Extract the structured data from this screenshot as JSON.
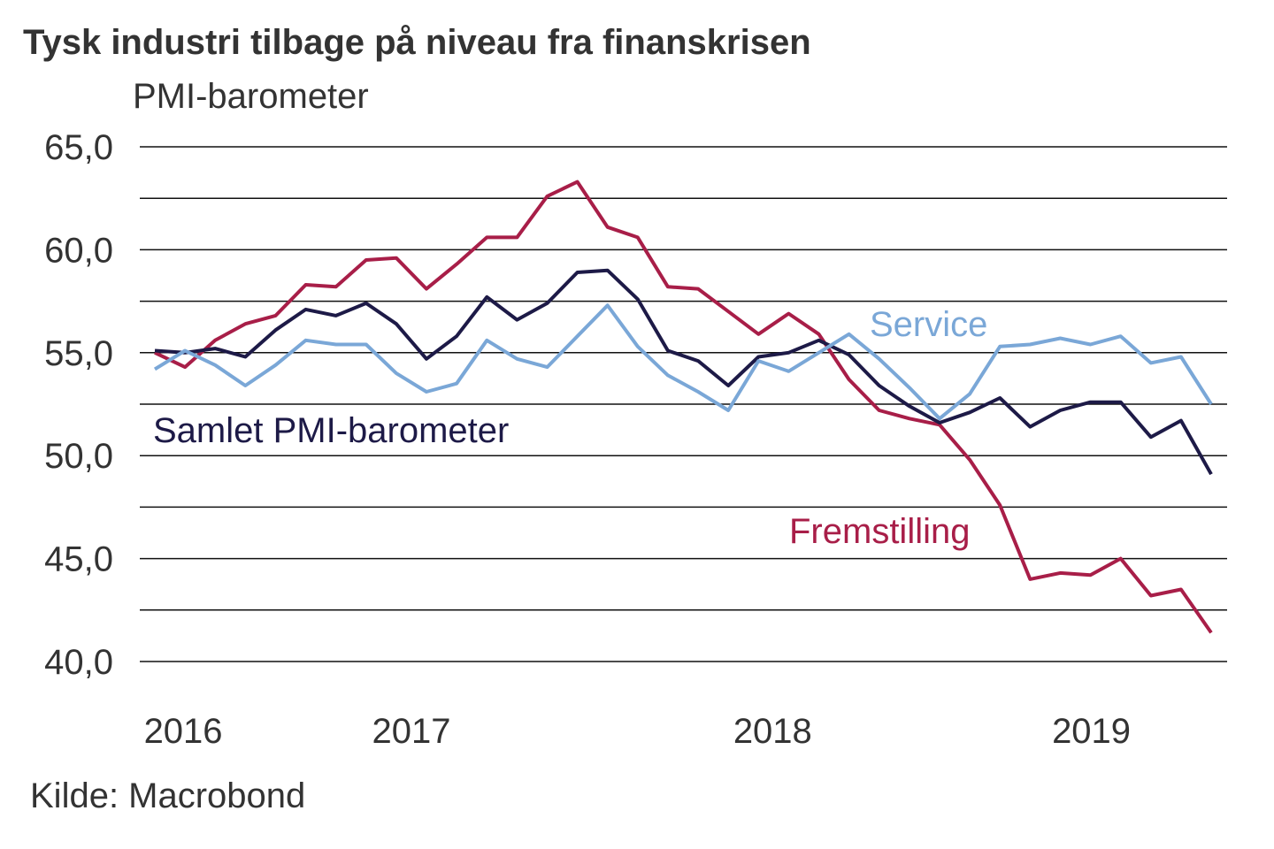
{
  "chart_data": {
    "type": "line",
    "title": "Tysk industri tilbage på niveau fra finanskrisen",
    "ylabel": "PMI-barometer",
    "xlabel": "",
    "ylim": [
      40,
      65
    ],
    "y_ticks": [
      "65,0",
      "60,0",
      "55,0",
      "50,0",
      "45,0",
      "40,0"
    ],
    "y_tick_values": [
      65,
      60,
      55,
      50,
      45,
      40
    ],
    "gridlines_every": 2.5,
    "grid": true,
    "x_count": 36,
    "x_ticks": [
      {
        "label": "2016",
        "at": 0.94
      },
      {
        "label": "2017",
        "at": 8.5
      },
      {
        "label": "2018",
        "at": 20.47
      },
      {
        "label": "2019",
        "at": 31.03
      }
    ],
    "series": [
      {
        "name": "Fremstilling",
        "color": "#a81e48",
        "values": [
          55.0,
          54.3,
          55.6,
          56.4,
          56.8,
          58.3,
          58.2,
          59.5,
          59.6,
          58.1,
          59.3,
          60.6,
          60.6,
          62.6,
          63.3,
          61.1,
          60.6,
          58.2,
          58.1,
          57.0,
          55.9,
          56.9,
          55.9,
          53.7,
          52.2,
          51.8,
          51.5,
          49.8,
          47.6,
          44.0,
          44.3,
          44.2,
          45.0,
          43.2,
          43.5,
          41.4
        ]
      },
      {
        "name": "Samlet PMI-barometer",
        "color": "#1d1a47",
        "values": [
          55.1,
          55.0,
          55.2,
          54.8,
          56.1,
          57.1,
          56.8,
          57.4,
          56.4,
          54.7,
          55.8,
          57.7,
          56.6,
          57.4,
          58.9,
          59.0,
          57.6,
          55.1,
          54.6,
          53.4,
          54.8,
          55.0,
          55.6,
          54.9,
          53.4,
          52.4,
          51.6,
          52.1,
          52.8,
          51.4,
          52.2,
          52.6,
          52.6,
          50.9,
          51.7,
          49.1
        ]
      },
      {
        "name": "Service",
        "color": "#7aa7d7",
        "values": [
          54.2,
          55.1,
          54.4,
          53.4,
          54.4,
          55.6,
          55.4,
          55.4,
          54.0,
          53.1,
          53.5,
          55.6,
          54.7,
          54.3,
          55.8,
          57.3,
          55.3,
          53.9,
          53.1,
          52.2,
          54.6,
          54.1,
          55.0,
          55.9,
          54.7,
          53.3,
          51.8,
          53.0,
          55.3,
          55.4,
          55.7,
          55.4,
          55.8,
          54.5,
          54.8,
          52.5
        ]
      }
    ],
    "legend": "inline labels"
  },
  "source": "Kilde: Macrobond"
}
